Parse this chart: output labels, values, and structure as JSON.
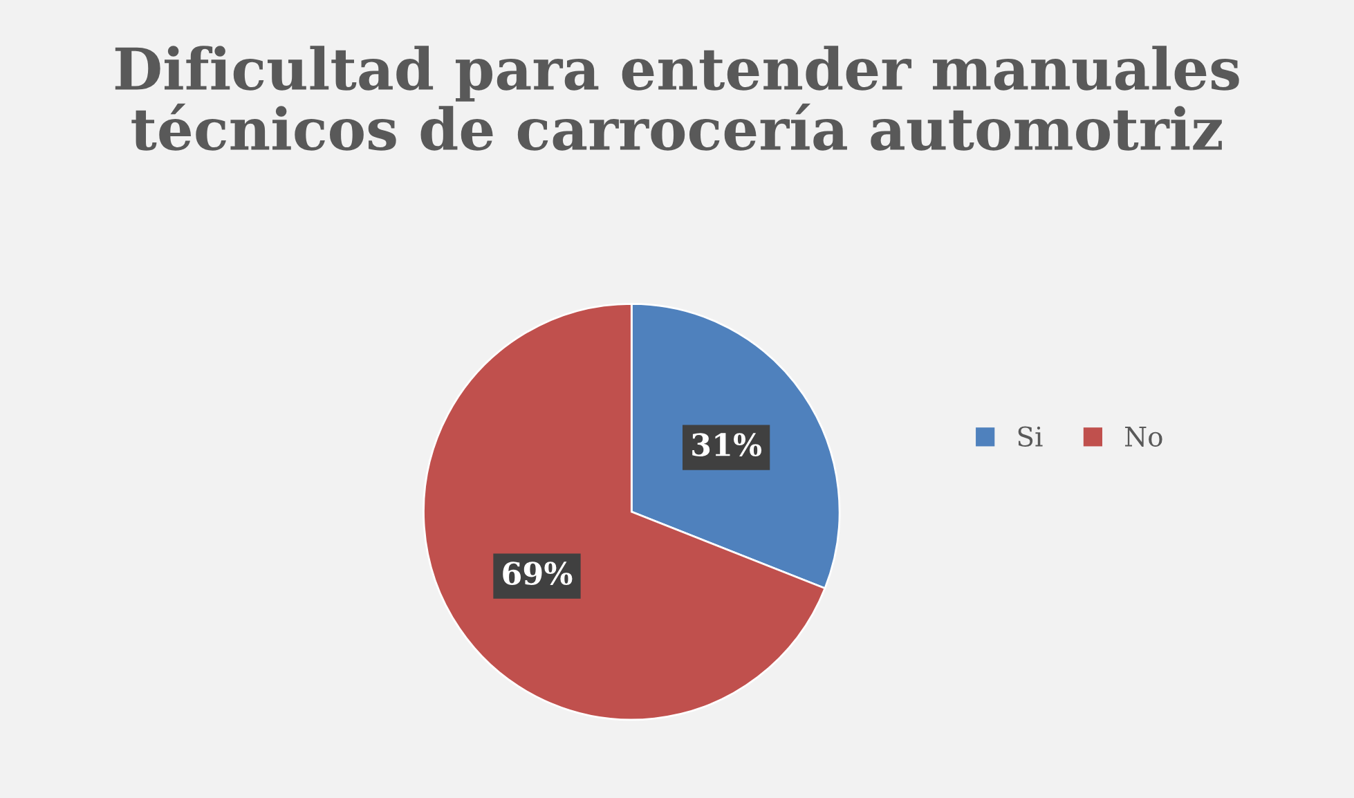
{
  "chart_data": {
    "type": "pie",
    "title": "Dificultad para entender manuales\ntécnicos de carrocería automotriz",
    "categories": [
      "Si",
      "No"
    ],
    "values": [
      31,
      69
    ],
    "colors": [
      "#4f81bd",
      "#c0504d"
    ],
    "value_labels": [
      "31%",
      "69%"
    ],
    "legend": "right"
  }
}
